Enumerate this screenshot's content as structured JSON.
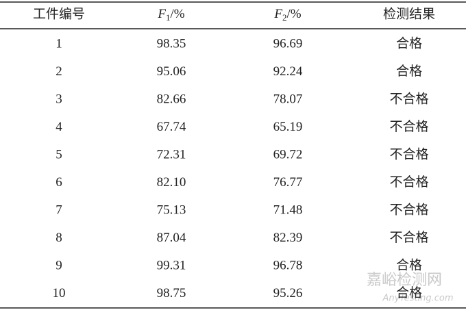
{
  "table": {
    "header": [
      "工件编号",
      {
        "symbol": "F",
        "sub": "1",
        "unit": "/%"
      },
      {
        "symbol": "F",
        "sub": "2",
        "unit": "/%"
      },
      "检测结果"
    ],
    "rows": [
      [
        "1",
        "98.35",
        "96.69",
        "合格"
      ],
      [
        "2",
        "95.06",
        "92.24",
        "合格"
      ],
      [
        "3",
        "82.66",
        "78.07",
        "不合格"
      ],
      [
        "4",
        "67.74",
        "65.19",
        "不合格"
      ],
      [
        "5",
        "72.31",
        "69.72",
        "不合格"
      ],
      [
        "6",
        "82.10",
        "76.77",
        "不合格"
      ],
      [
        "7",
        "75.13",
        "71.48",
        "不合格"
      ],
      [
        "8",
        "87.04",
        "82.39",
        "不合格"
      ],
      [
        "9",
        "99.31",
        "96.78",
        "合格"
      ],
      [
        "10",
        "98.75",
        "95.26",
        "合格"
      ]
    ]
  },
  "watermark": {
    "title": "嘉峪检测网",
    "url": "AnyTesting.com"
  }
}
